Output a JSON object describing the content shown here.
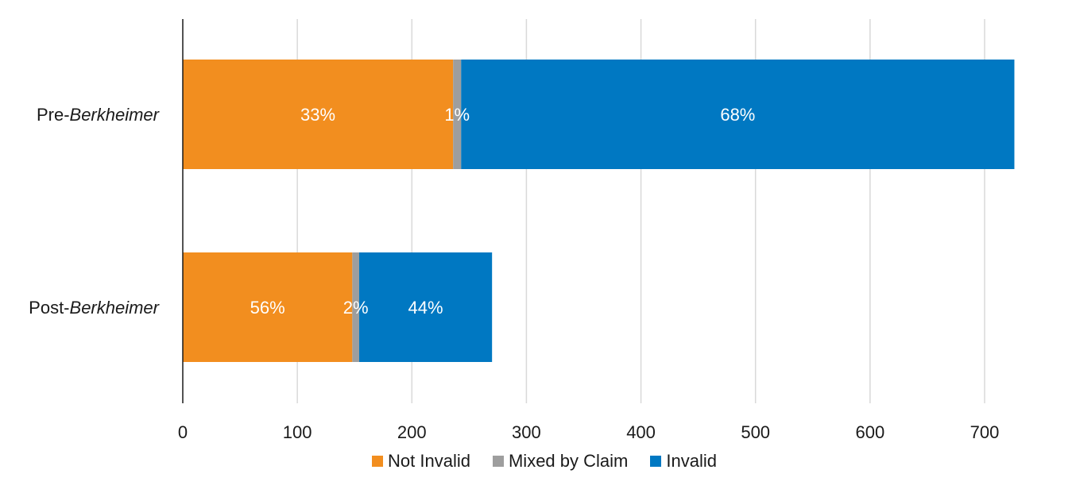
{
  "chart_data": {
    "type": "bar",
    "orientation": "horizontal",
    "stacked": true,
    "categories": [
      {
        "prefix": "Pre-",
        "italic": "Berkheimer"
      },
      {
        "prefix": "Post-",
        "italic": "Berkheimer"
      }
    ],
    "series": [
      {
        "name": "Not Invalid",
        "color": "#F28E1F",
        "values": [
          236,
          148
        ],
        "labels": [
          "33%",
          "56%"
        ]
      },
      {
        "name": "Mixed by Claim",
        "color": "#9E9E9E",
        "values": [
          7,
          6
        ],
        "labels": [
          "1%",
          "2%"
        ]
      },
      {
        "name": "Invalid",
        "color": "#0078C2",
        "values": [
          483,
          116
        ],
        "labels": [
          "68%",
          "44%"
        ]
      }
    ],
    "xlim": [
      0,
      700
    ],
    "xticks": [
      "0",
      "100",
      "200",
      "300",
      "400",
      "500",
      "600",
      "700"
    ],
    "xtick_values": [
      0,
      100,
      200,
      300,
      400,
      500,
      600,
      700
    ],
    "gridlines": true,
    "legend_position": "bottom",
    "title": "",
    "xlabel": "",
    "ylabel": ""
  }
}
